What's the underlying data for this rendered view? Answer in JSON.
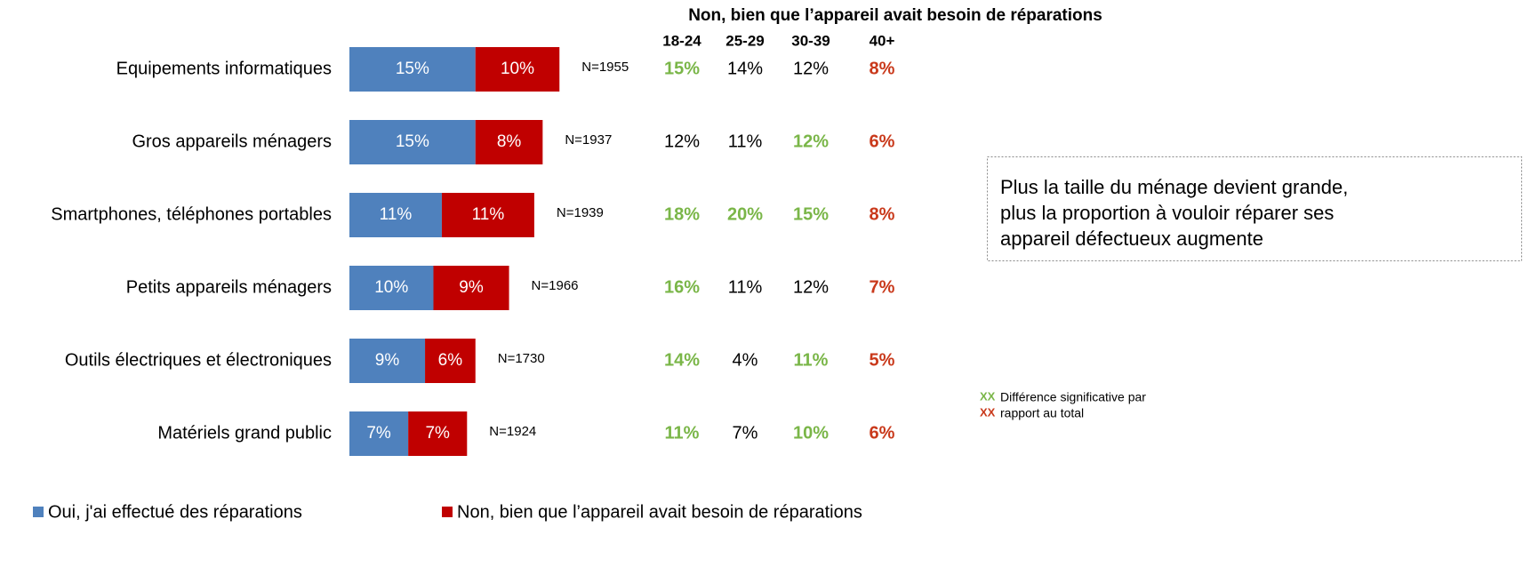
{
  "chart_data": {
    "type": "bar",
    "orientation": "horizontal",
    "stacked": true,
    "categories": [
      "Equipements informatiques",
      "Gros appareils ménagers",
      "Smartphones, téléphones portables",
      "Petits appareils ménagers",
      "Outils électriques et électroniques",
      "Matériels grand public"
    ],
    "series": [
      {
        "name": "Oui, j'ai effectué des réparations",
        "color": "#4f81bd",
        "values": [
          15,
          15,
          11,
          10,
          9,
          7
        ],
        "value_labels": [
          "15%",
          "15%",
          "11%",
          "10%",
          "9%",
          "7%"
        ]
      },
      {
        "name": "Non, bien que l’appareil avait besoin de réparations",
        "color": "#c00000",
        "values": [
          10,
          8,
          11,
          9,
          6,
          7
        ],
        "value_labels": [
          "10%",
          "8%",
          "11%",
          "9%",
          "6%",
          "7%"
        ]
      }
    ],
    "n_labels": [
      "N=1955",
      "N=1937",
      "N=1939",
      "N=1966",
      "N=1730",
      "N=1924"
    ],
    "legend": "bottom"
  },
  "table": {
    "title": "Non, bien que l’appareil avait besoin de réparations",
    "columns": [
      "18-24",
      "25-29",
      "30-39",
      "40+"
    ],
    "rows": [
      [
        "15%",
        "14%",
        "12%",
        "8%"
      ],
      [
        "12%",
        "11%",
        "12%",
        "6%"
      ],
      [
        "18%",
        "20%",
        "15%",
        "8%"
      ],
      [
        "16%",
        "11%",
        "12%",
        "7%"
      ],
      [
        "14%",
        "4%",
        "11%",
        "5%"
      ],
      [
        "11%",
        "7%",
        "10%",
        "6%"
      ]
    ],
    "cell_colors": [
      [
        "#7ab648",
        "#000000",
        "#000000",
        "#c9391b"
      ],
      [
        "#000000",
        "#000000",
        "#7ab648",
        "#c9391b"
      ],
      [
        "#7ab648",
        "#7ab648",
        "#7ab648",
        "#c9391b"
      ],
      [
        "#7ab648",
        "#000000",
        "#000000",
        "#c9391b"
      ],
      [
        "#7ab648",
        "#000000",
        "#7ab648",
        "#c9391b"
      ],
      [
        "#7ab648",
        "#000000",
        "#7ab648",
        "#c9391b"
      ]
    ]
  },
  "annotation": {
    "lines": [
      "Plus la taille du ménage devient grande,",
      "plus la proportion à vouloir réparer ses",
      "appareil défectueux augmente"
    ]
  },
  "note": {
    "markers": [
      {
        "text": "XX",
        "color": "#7ab648"
      },
      {
        "text": "XX",
        "color": "#c9391b"
      }
    ],
    "lines": [
      "Différence significative par",
      "rapport au total"
    ]
  }
}
